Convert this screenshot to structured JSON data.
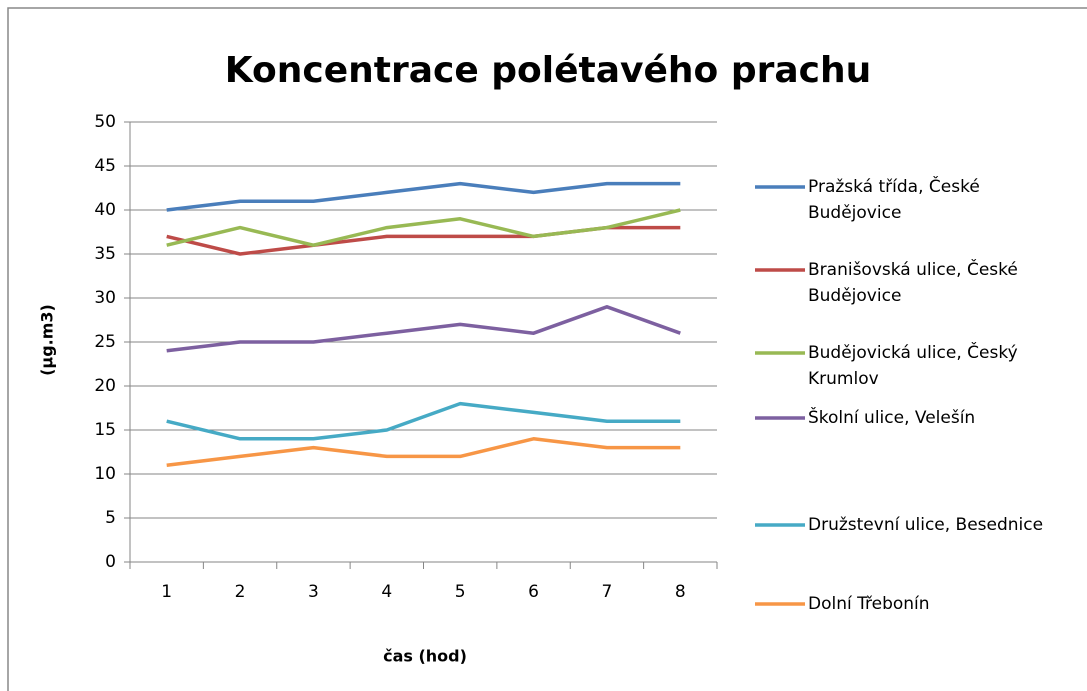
{
  "chart_data": {
    "type": "line",
    "title": "Koncentrace polétavého prachu",
    "x_label": "čas (hod)",
    "y_label": "(µg.m3)",
    "categories": [
      "1",
      "2",
      "3",
      "4",
      "5",
      "6",
      "7",
      "8"
    ],
    "series": [
      {
        "name": "Pražská třída, České Budějovice",
        "color": "#4a7ebb",
        "values": [
          40,
          41,
          41,
          42,
          43,
          42,
          43,
          43
        ]
      },
      {
        "name": "Branišovská ulice, České Budějovice",
        "color": "#be4b48",
        "values": [
          37,
          35,
          36,
          37,
          37,
          37,
          38,
          38
        ]
      },
      {
        "name": "Budějovická ulice, Český Krumlov",
        "color": "#98b954",
        "values": [
          36,
          38,
          36,
          38,
          39,
          37,
          38,
          40
        ]
      },
      {
        "name": "Školní ulice, Velešín",
        "color": "#7d60a0",
        "values": [
          24,
          25,
          25,
          26,
          27,
          26,
          29,
          26
        ]
      },
      {
        "name": "Družstevní ulice, Besednice",
        "color": "#46aac5",
        "values": [
          16,
          14,
          14,
          15,
          18,
          17,
          16,
          16
        ]
      },
      {
        "name": "Dolní Třebonín",
        "color": "#f79646",
        "values": [
          11,
          12,
          13,
          12,
          12,
          14,
          13,
          13
        ]
      }
    ],
    "ylim": [
      0,
      50
    ],
    "yticks": [
      0,
      5,
      10,
      15,
      20,
      25,
      30,
      35,
      40,
      45,
      50
    ],
    "grid": true,
    "legend": "right"
  }
}
